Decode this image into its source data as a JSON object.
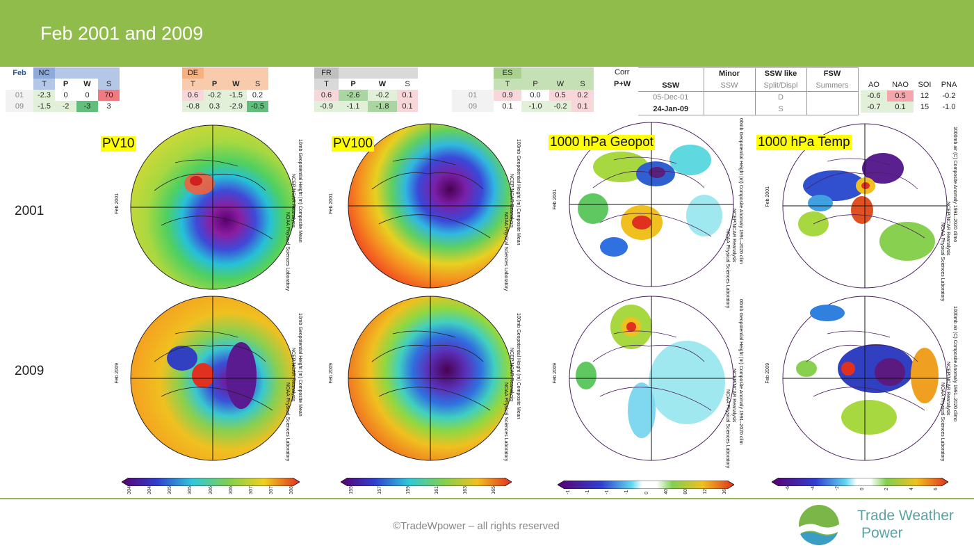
{
  "header": {
    "title": "Feb 2001 and 2009"
  },
  "tables": {
    "month_label": "Feb",
    "row_years": [
      "01",
      "09"
    ],
    "nc": {
      "name": "NC",
      "cols": [
        "T",
        "P",
        "W",
        "S"
      ],
      "rows": [
        [
          "-2.3",
          "0",
          "0",
          "70"
        ],
        [
          "-1.5",
          "-2",
          "-3",
          "3"
        ]
      ]
    },
    "de": {
      "name": "DE",
      "cols": [
        "T",
        "P",
        "W",
        "S"
      ],
      "rows": [
        [
          "0.6",
          "-0.2",
          "-1.5",
          "0.2"
        ],
        [
          "-0.8",
          "0.3",
          "-2.9",
          "-0.5"
        ]
      ]
    },
    "fr": {
      "name": "FR",
      "cols": [
        "T",
        "P",
        "W",
        "S"
      ],
      "rows": [
        [
          "0.6",
          "-2.6",
          "-0.2",
          "0.1"
        ],
        [
          "-0.9",
          "-1.1",
          "-1.8",
          "0.1"
        ]
      ]
    },
    "es": {
      "name": "ES",
      "cols": [
        "T",
        "P",
        "W",
        "S"
      ],
      "rows": [
        [
          "0.9",
          "0.0",
          "0.5",
          "0.2"
        ],
        [
          "0.1",
          "-1.0",
          "-0.2",
          "0.1"
        ]
      ]
    },
    "corr": {
      "label1": "Corr",
      "label2": "P+W"
    },
    "ssw": {
      "h1": [
        "",
        "Minor",
        "SSW like",
        "FSW"
      ],
      "h2": [
        "SSW",
        "SSW",
        "Split/Displ",
        "Summers"
      ],
      "rows": [
        [
          "05-Dec-01",
          "",
          "D",
          ""
        ],
        [
          "24-Jan-09",
          "",
          "S",
          ""
        ]
      ]
    },
    "indices": {
      "cols": [
        "AO",
        "NAO",
        "SOI",
        "PNA"
      ],
      "rows": [
        [
          "-0.6",
          "0.5",
          "12",
          "-0.2"
        ],
        [
          "-0.7",
          "0.1",
          "15",
          "-1.0"
        ]
      ]
    }
  },
  "row_labels": [
    "2001",
    "2009"
  ],
  "panels": {
    "pv10": {
      "tag": "PV10",
      "right_text": "10mb Geopotential Height (m) Composite Mean",
      "right_text2": "NCEP/NCAR Reanalysis",
      "right_text3": "NOAA Physical Sciences Laboratory"
    },
    "pv100": {
      "tag": "PV100",
      "right_text": "100mb Geopotential Height (m) Composite Mean",
      "right_text2": "NCEP/NCAR Reanalysis",
      "right_text3": "NOAA Physical Sciences Laboratory"
    },
    "geopot": {
      "tag": "1000 hPa Geopot",
      "right_text": "00mb Geopotential Height (m) Composite Anomaly 1991–2020 clim",
      "right_text2": "NCEP/NCAR Reanalysis",
      "right_text3": "NOAA Physical Sciences Laboratory"
    },
    "temp": {
      "tag": "1000 hPa Temp",
      "right_text": "1000mb air (C) Composite Anomaly 1991–2020 climo",
      "right_text2": "NCEP/NCAR Reanalysis",
      "right_text3": "NOAA Physical Sciences Laboratory"
    },
    "left_2001": "Feb 2001",
    "left_2009": "Feb 2009"
  },
  "colorbars": {
    "pv10": [
      "304",
      "304",
      "305",
      "305",
      "306",
      "306",
      "307",
      "307",
      "308"
    ],
    "pv100": [
      "155",
      "157",
      "159",
      "161",
      "163",
      "165"
    ],
    "geopot": [
      "-1",
      "-1",
      "-1",
      "-1",
      "0",
      "40",
      "80",
      "12",
      "16"
    ],
    "temp": [
      "-6",
      "-4",
      "-2",
      "0",
      "2",
      "4",
      "6"
    ]
  },
  "footer": {
    "copyright": "©TradeWpower – all rights reserved",
    "logo_line1": "Trade Weather",
    "logo_line2": "Power"
  }
}
